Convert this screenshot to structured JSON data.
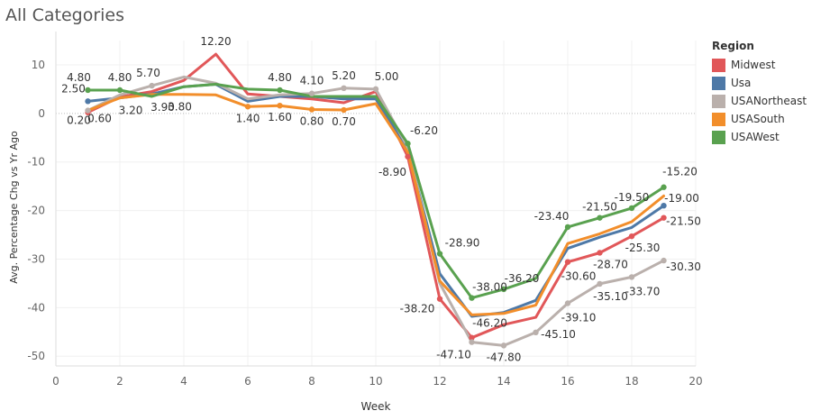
{
  "chart_data": {
    "type": "line",
    "title": "All Categories",
    "xlabel": "Week",
    "ylabel": "Avg. Percentage Chg vs Yr Ago",
    "xlim": [
      0,
      20
    ],
    "ylim": [
      -52,
      15
    ],
    "xticks": [
      0,
      2,
      4,
      6,
      8,
      10,
      12,
      14,
      16,
      18,
      20
    ],
    "yticks": [
      10,
      0,
      -10,
      -20,
      -30,
      -40,
      -50
    ],
    "legend_title": "Region",
    "legend_position": "right",
    "grid": true,
    "series": [
      {
        "name": "Midwest",
        "color": "#e15759",
        "x": [
          1,
          2,
          3,
          4,
          5,
          6,
          7,
          8,
          9,
          10,
          11,
          12,
          13,
          14,
          15,
          16,
          17,
          18,
          19
        ],
        "y": [
          0.2,
          3.4,
          4.5,
          6.8,
          12.2,
          4.0,
          3.5,
          3.0,
          2.2,
          4.5,
          -8.9,
          -38.2,
          -46.2,
          -43.5,
          -42.0,
          -30.6,
          -28.7,
          -25.3,
          -21.5
        ],
        "markers": [
          1,
          11,
          12,
          13,
          16,
          17,
          18,
          19
        ]
      },
      {
        "name": "Usa",
        "color": "#4e79a7",
        "x": [
          1,
          2,
          3,
          4,
          5,
          6,
          7,
          8,
          9,
          10,
          11,
          12,
          13,
          14,
          15,
          16,
          17,
          18,
          19
        ],
        "y": [
          2.5,
          3.2,
          4.0,
          5.5,
          6.0,
          2.5,
          3.5,
          3.5,
          3.0,
          3.0,
          -7.5,
          -33.0,
          -41.8,
          -41.0,
          -38.5,
          -27.8,
          -25.5,
          -23.5,
          -19.0
        ],
        "markers": [
          1,
          19
        ]
      },
      {
        "name": "USANortheast",
        "color": "#bab0ac",
        "x": [
          1,
          2,
          3,
          4,
          5,
          6,
          7,
          8,
          9,
          10,
          11,
          12,
          13,
          14,
          15,
          16,
          17,
          18,
          19
        ],
        "y": [
          0.6,
          3.8,
          5.7,
          7.5,
          6.2,
          3.0,
          3.8,
          4.1,
          5.2,
          5.0,
          -7.0,
          -35.0,
          -47.1,
          -47.8,
          -45.1,
          -39.1,
          -35.1,
          -33.7,
          -30.3
        ],
        "markers": [
          1,
          3,
          8,
          9,
          10,
          13,
          14,
          15,
          16,
          17,
          18,
          19
        ]
      },
      {
        "name": "USASouth",
        "color": "#f28e2b",
        "x": [
          1,
          2,
          3,
          4,
          5,
          6,
          7,
          8,
          9,
          10,
          11,
          12,
          13,
          14,
          15,
          16,
          17,
          18,
          19
        ],
        "y": [
          0.6,
          3.2,
          3.9,
          3.9,
          3.8,
          1.4,
          1.6,
          0.8,
          0.7,
          2.0,
          -8.0,
          -34.5,
          -41.5,
          -41.2,
          -39.5,
          -26.8,
          -24.8,
          -22.3,
          -17.0
        ],
        "markers": [
          6,
          7,
          8,
          9
        ]
      },
      {
        "name": "USAWest",
        "color": "#59a14f",
        "x": [
          1,
          2,
          3,
          4,
          5,
          6,
          7,
          8,
          9,
          10,
          11,
          12,
          13,
          14,
          15,
          16,
          17,
          18,
          19
        ],
        "y": [
          4.8,
          4.8,
          3.5,
          5.5,
          6.0,
          5.0,
          4.8,
          3.5,
          3.5,
          3.5,
          -6.2,
          -28.9,
          -38.0,
          -36.2,
          -34.0,
          -23.4,
          -21.5,
          -19.5,
          -15.2
        ],
        "markers": [
          1,
          2,
          7,
          11,
          12,
          13,
          14,
          16,
          17,
          18,
          19
        ]
      }
    ],
    "data_labels": [
      {
        "x": 1,
        "y": 4.8,
        "text": "4.80"
      },
      {
        "x": 1,
        "y": 2.5,
        "text": "2.50"
      },
      {
        "x": 1,
        "y": 0.2,
        "text": "0.20"
      },
      {
        "x": 1,
        "y": 0.6,
        "text": "0.60"
      },
      {
        "x": 2,
        "y": 4.8,
        "text": "4.80"
      },
      {
        "x": 2,
        "y": 3.2,
        "text": "3.20"
      },
      {
        "x": 3,
        "y": 5.7,
        "text": "5.70"
      },
      {
        "x": 3,
        "y": 3.9,
        "text": "3.90"
      },
      {
        "x": 5,
        "y": 12.2,
        "text": "12.20"
      },
      {
        "x": 5,
        "y": 3.8,
        "text": "3.80"
      },
      {
        "x": 6,
        "y": 1.4,
        "text": "1.40"
      },
      {
        "x": 7,
        "y": 4.8,
        "text": "4.80"
      },
      {
        "x": 7,
        "y": 1.6,
        "text": "1.60"
      },
      {
        "x": 8,
        "y": 4.1,
        "text": "4.10"
      },
      {
        "x": 8,
        "y": 0.8,
        "text": "0.80"
      },
      {
        "x": 9,
        "y": 5.2,
        "text": "5.20"
      },
      {
        "x": 9,
        "y": 0.7,
        "text": "0.70"
      },
      {
        "x": 10,
        "y": 5.0,
        "text": "5.00"
      },
      {
        "x": 11,
        "y": -6.2,
        "text": "-6.20"
      },
      {
        "x": 11,
        "y": -8.9,
        "text": "-8.90"
      },
      {
        "x": 12,
        "y": -28.9,
        "text": "-28.90"
      },
      {
        "x": 12,
        "y": -38.2,
        "text": "-38.20"
      },
      {
        "x": 13,
        "y": -38.0,
        "text": "-38.00"
      },
      {
        "x": 13,
        "y": -46.2,
        "text": "-46.20"
      },
      {
        "x": 13,
        "y": -47.1,
        "text": "-47.10"
      },
      {
        "x": 14,
        "y": -36.2,
        "text": "-36.20"
      },
      {
        "x": 14,
        "y": -47.8,
        "text": "-47.80"
      },
      {
        "x": 15,
        "y": -45.1,
        "text": "-45.10"
      },
      {
        "x": 16,
        "y": -23.4,
        "text": "-23.40"
      },
      {
        "x": 16,
        "y": -30.6,
        "text": "-30.60"
      },
      {
        "x": 16,
        "y": -39.1,
        "text": "-39.10"
      },
      {
        "x": 17,
        "y": -21.5,
        "text": "-21.50"
      },
      {
        "x": 17,
        "y": -28.7,
        "text": "-28.70"
      },
      {
        "x": 17,
        "y": -35.1,
        "text": "-35.10"
      },
      {
        "x": 18,
        "y": -19.5,
        "text": "-19.50"
      },
      {
        "x": 18,
        "y": -25.3,
        "text": "-25.30"
      },
      {
        "x": 18,
        "y": -33.7,
        "text": "-33.70"
      },
      {
        "x": 19,
        "y": -15.2,
        "text": "-15.20"
      },
      {
        "x": 19,
        "y": -19.0,
        "text": "-19.00"
      },
      {
        "x": 19,
        "y": -21.5,
        "text": "-21.50"
      },
      {
        "x": 19,
        "y": -30.3,
        "text": "-30.30"
      }
    ]
  }
}
